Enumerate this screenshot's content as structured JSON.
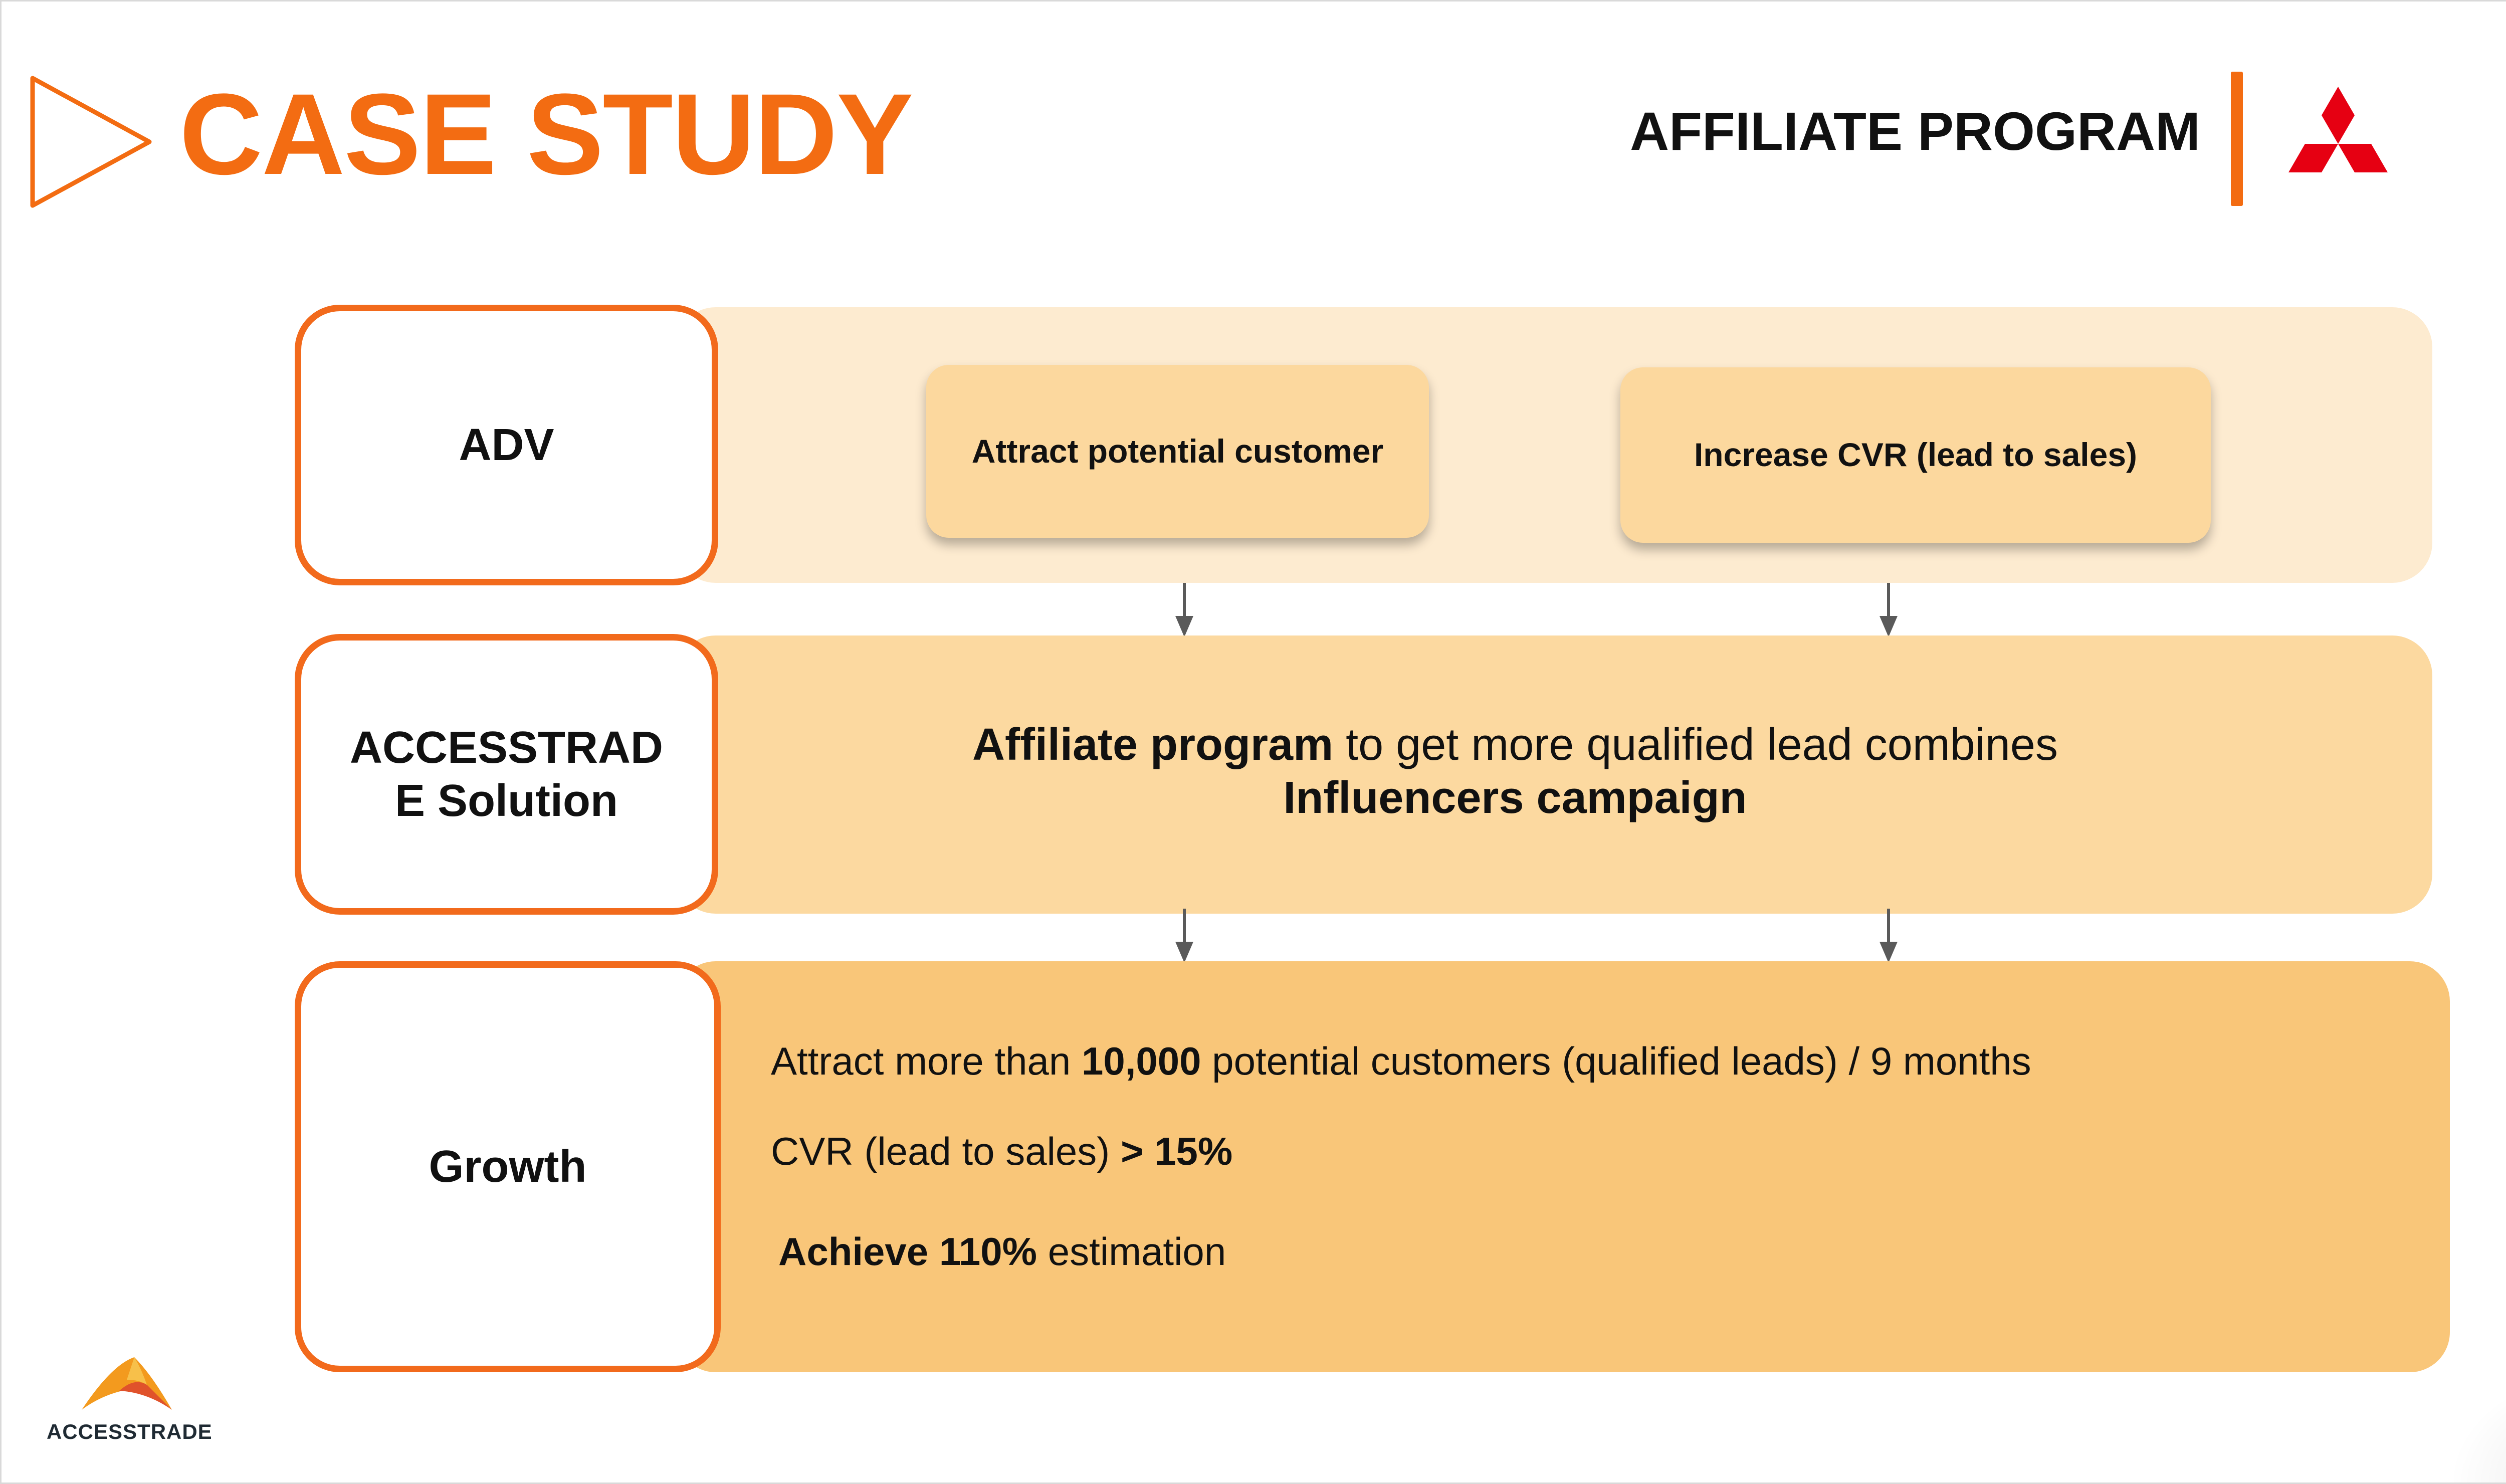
{
  "header": {
    "title": "CASE STUDY",
    "program_title": "AFFILIATE PROGRAM"
  },
  "rows": {
    "adv": {
      "label": "ADV",
      "goals": [
        "Attract potential customer",
        "Increase CVR (lead to sales)"
      ]
    },
    "solution": {
      "label": "ACCESSTRADE Solution",
      "text_bold_1": "Affiliate program",
      "text_regular": " to get more qualified lead combines",
      "text_bold_2": "Influencers campaign"
    },
    "growth": {
      "label": "Growth",
      "line1_pre": "Attract more than ",
      "line1_bold": "10,000",
      "line1_post": " potential customers (qualified leads) / 9 months",
      "line2_pre": "CVR (lead to sales) ",
      "line2_bold": "> 15%",
      "line3_bold": "Achieve 110%",
      "line3_post": " estimation"
    }
  },
  "footer": {
    "logo_text": "ACCESSTRADE"
  },
  "colors": {
    "accent": "#f36c12",
    "band_light": "#fdebd0",
    "band_mid": "#fcd9a0",
    "band_dark": "#f9c679",
    "brand_red": "#e60012"
  },
  "icons": [
    "play-outline-icon",
    "three-diamond-logo-icon",
    "accesstrade-logo-icon",
    "down-arrow-icon"
  ]
}
